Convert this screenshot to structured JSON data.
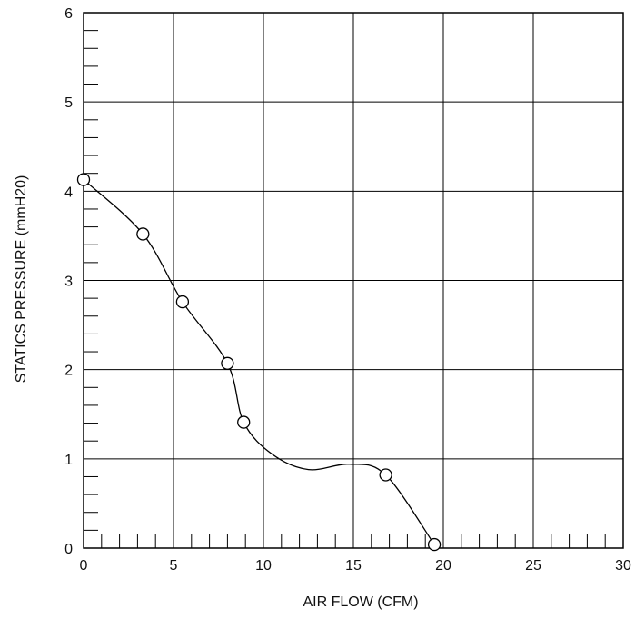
{
  "chart_data": {
    "type": "line",
    "xlabel": "AIR FLOW (CFM)",
    "ylabel": "STATICS PRESSURE  (mmH20)",
    "xlim": [
      0,
      30
    ],
    "ylim": [
      0,
      6
    ],
    "x_ticks": [
      0,
      5,
      10,
      15,
      20,
      25,
      30
    ],
    "y_ticks": [
      0,
      1,
      2,
      3,
      4,
      5,
      6
    ],
    "x_tick_labels": [
      "0",
      "5",
      "10",
      "15",
      "20",
      "25",
      "30"
    ],
    "y_tick_labels": [
      "0",
      "1",
      "2",
      "3",
      "4",
      "5",
      "6"
    ],
    "grid": true,
    "marker": "open-circle",
    "series": [
      {
        "points": [
          {
            "x": 0,
            "y": 4.13
          },
          {
            "x": 3.3,
            "y": 3.52
          },
          {
            "x": 5.5,
            "y": 2.76
          },
          {
            "x": 8.0,
            "y": 2.07
          },
          {
            "x": 8.9,
            "y": 1.41
          },
          {
            "x": 16.8,
            "y": 0.82
          },
          {
            "x": 19.5,
            "y": 0.04
          }
        ],
        "curve_points": [
          {
            "x": 0,
            "y": 4.13
          },
          {
            "x": 3.3,
            "y": 3.52
          },
          {
            "x": 5.5,
            "y": 2.76
          },
          {
            "x": 8.0,
            "y": 2.07
          },
          {
            "x": 8.9,
            "y": 1.41
          },
          {
            "x": 10.5,
            "y": 1.05
          },
          {
            "x": 12.5,
            "y": 0.88
          },
          {
            "x": 14.8,
            "y": 0.94
          },
          {
            "x": 16.8,
            "y": 0.82
          },
          {
            "x": 19.5,
            "y": 0.04
          }
        ]
      }
    ]
  }
}
